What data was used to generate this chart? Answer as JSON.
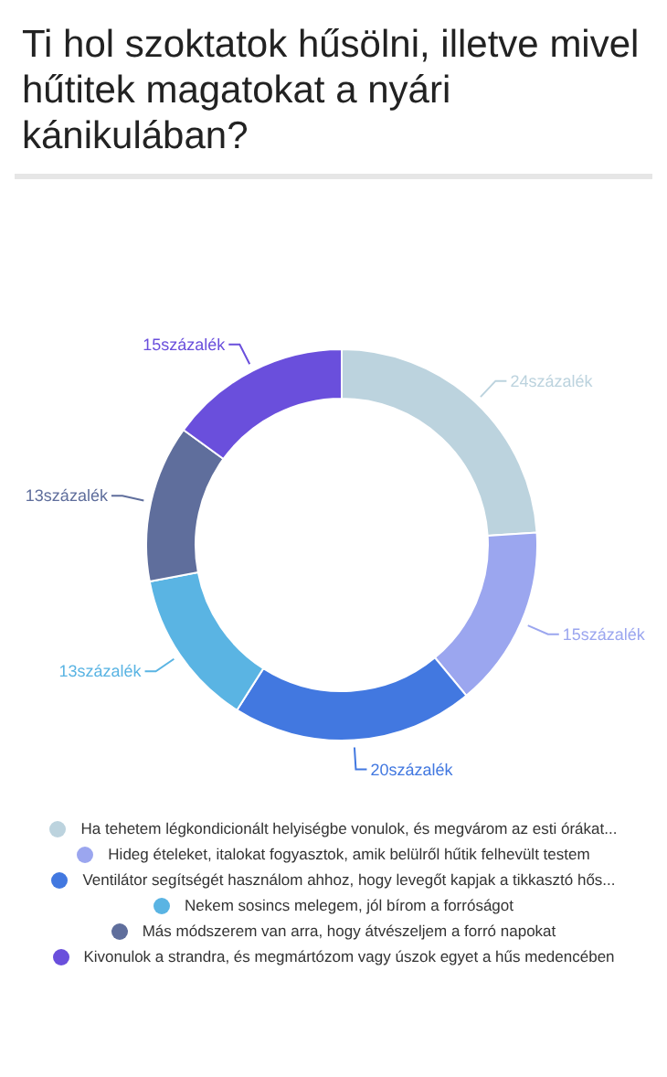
{
  "chart_data": {
    "type": "donut",
    "title": "Ti hol szoktatok hűsölni, illetve mivel hűtitek magatokat a nyári kánikulában?",
    "categories": [
      "Ha tehetem légkondicionált helyiségbe vonulok, és megvárom az esti órákat...",
      "Hideg ételeket, italokat fogyasztok, amik belülről hűtik felhevült testem",
      "Ventilátor segítségét használom ahhoz, hogy levegőt kapjak a tikkasztó hős...",
      "Nekem sosincs melegem, jól bírom a forróságot",
      "Más módszerem van arra, hogy átvészeljem a forró napokat",
      "Kivonulok a strandra, és megmártózom vagy úszok egyet a hűs medencében"
    ],
    "values": [
      24,
      15,
      20,
      13,
      13,
      15
    ],
    "colors": [
      "#bcd3de",
      "#9ba6ef",
      "#4278e0",
      "#5ab4e3",
      "#5f6e9c",
      "#6a4fdc"
    ],
    "value_labels": [
      "24százalék",
      "15százalék",
      "20százalék",
      "13százalék",
      "13százalék",
      "15százalék"
    ],
    "legend": "bottom"
  }
}
